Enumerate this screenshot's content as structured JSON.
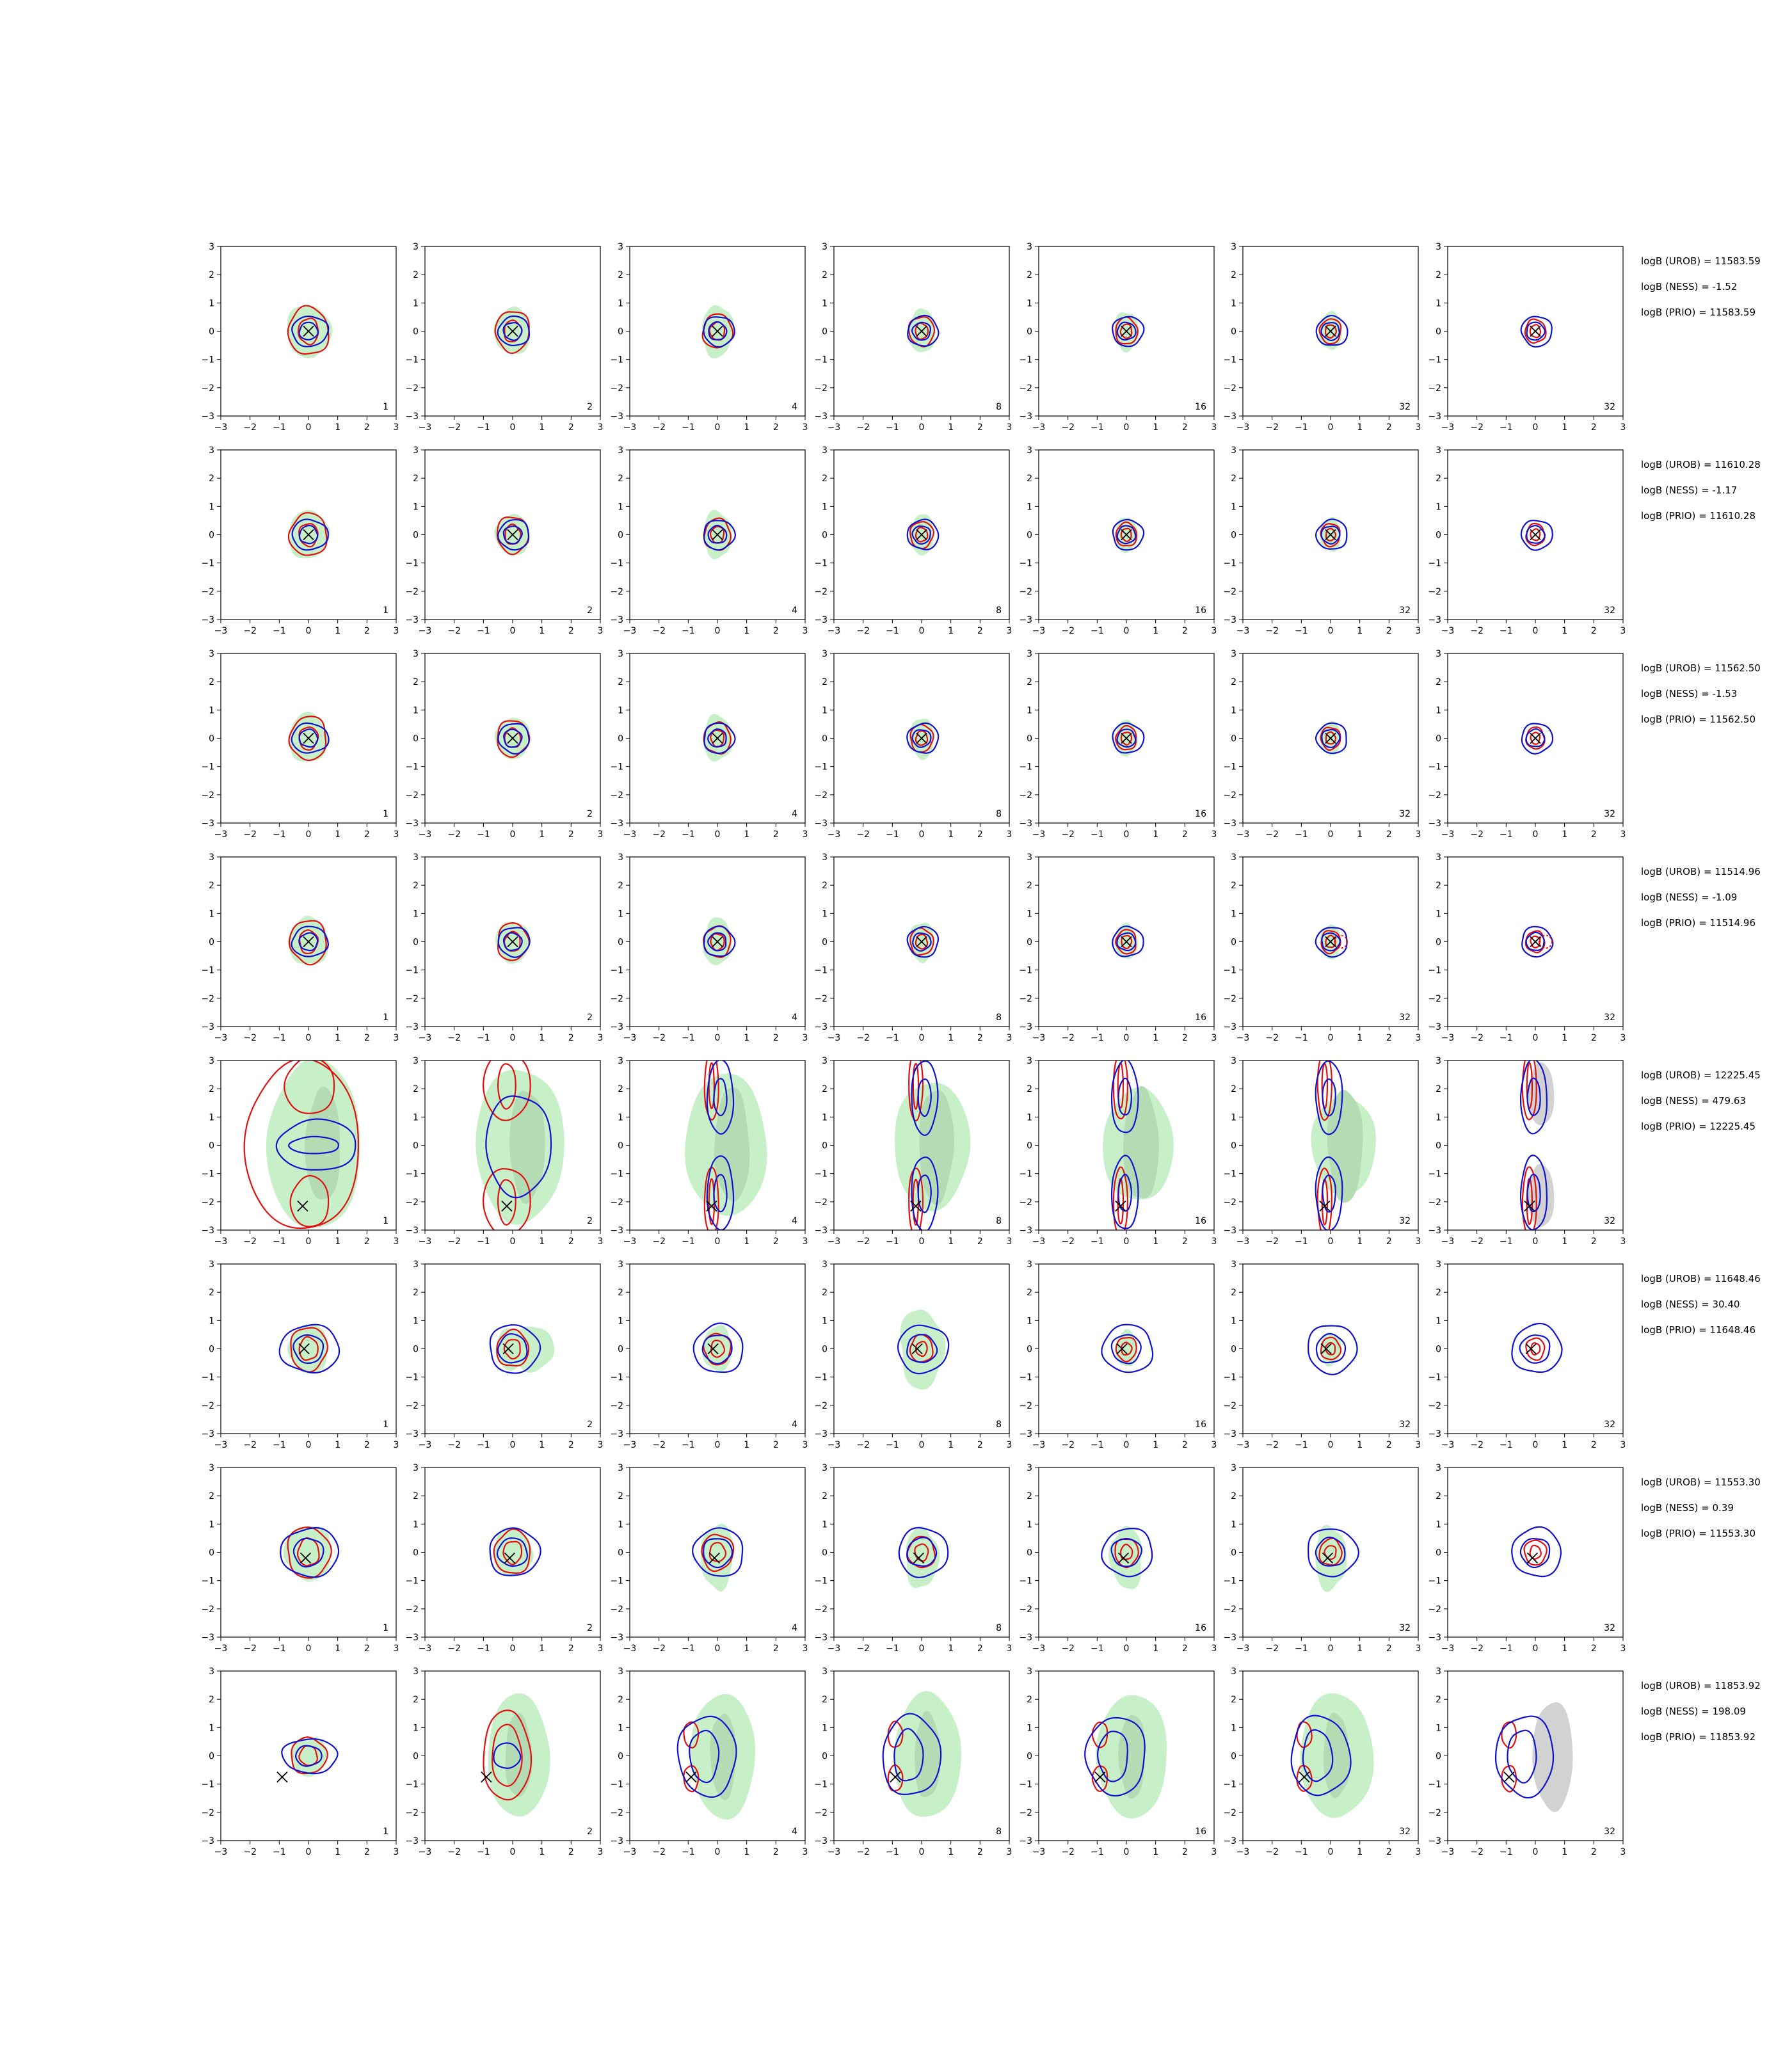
{
  "chart_data": {
    "type": "contour-grid",
    "rows": 8,
    "cols": 7,
    "xlim": [
      -3,
      3
    ],
    "ylim": [
      -3,
      3
    ],
    "ticks": [
      -3,
      -2,
      -1,
      0,
      1,
      2,
      3
    ],
    "tick_labels": [
      "−3",
      "−2",
      "−1",
      "0",
      "1",
      "2",
      "3"
    ],
    "panel_labels": [
      "1",
      "2",
      "4",
      "8",
      "16",
      "32",
      "32"
    ],
    "colors": {
      "fill": "#c8f0c8",
      "fill_inner": "#b4dcb4",
      "grey": "#d2d2d2",
      "red": "#e01010",
      "blue": "#1010d0",
      "marker": "#000000"
    },
    "row_data": [
      {
        "marker": [
          0.0,
          0.0
        ],
        "kind": "round",
        "stats": [
          "logB (UROB) = 11583.59",
          "logB (NESS) = -1.52",
          "logB (PRIO) = 11583.59"
        ]
      },
      {
        "marker": [
          0.0,
          0.0
        ],
        "kind": "round",
        "stats": [
          "logB (UROB) = 11610.28",
          "logB (NESS) = -1.17",
          "logB (PRIO) = 11610.28"
        ]
      },
      {
        "marker": [
          0.0,
          0.0
        ],
        "kind": "round",
        "stats": [
          "logB (UROB) = 11562.50",
          "logB (NESS) = -1.53",
          "logB (PRIO) = 11562.50"
        ]
      },
      {
        "marker": [
          0.0,
          0.0
        ],
        "kind": "round",
        "stats": [
          "logB (UROB) = 11514.96",
          "logB (NESS) = -1.09",
          "logB (PRIO) = 11514.96"
        ]
      },
      {
        "marker": [
          -0.2,
          -2.15
        ],
        "kind": "bimodal-vertical",
        "stats": [
          "logB (UROB) = 12225.45",
          "logB (NESS) = 479.63",
          "logB (PRIO) = 12225.45"
        ]
      },
      {
        "marker": [
          -0.15,
          0.0
        ],
        "kind": "round",
        "stats": [
          "logB (UROB) = 11648.46",
          "logB (NESS) = 30.40",
          "logB (PRIO) = 11648.46"
        ]
      },
      {
        "marker": [
          -0.1,
          -0.2
        ],
        "kind": "round",
        "stats": [
          "logB (UROB) = 11553.30",
          "logB (NESS) = 0.39",
          "logB (PRIO) = 11553.30"
        ]
      },
      {
        "marker": [
          -0.9,
          -0.75
        ],
        "kind": "crescent",
        "stats": [
          "logB (UROB) = 11853.92",
          "logB (NESS) = 198.09",
          "logB (PRIO) = 11853.92"
        ]
      }
    ]
  }
}
